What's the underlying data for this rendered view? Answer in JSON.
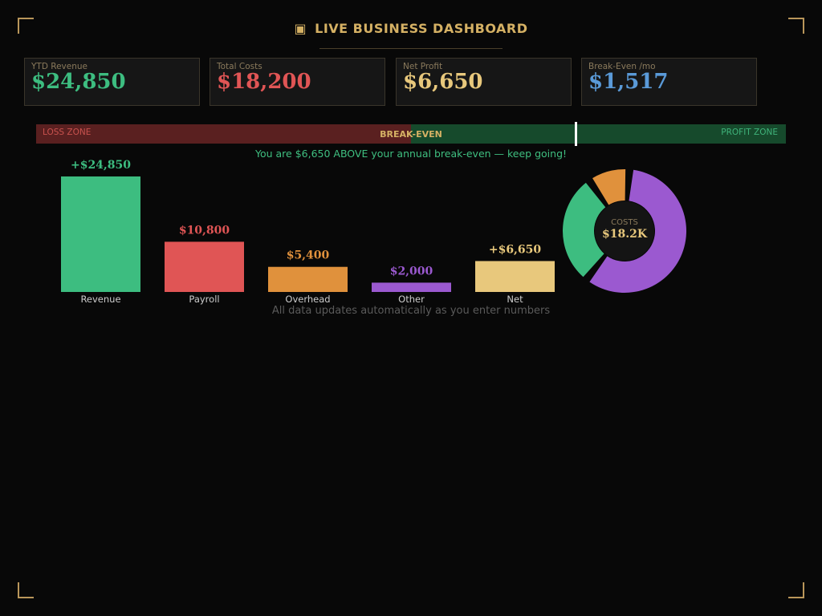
{
  "header": {
    "icon": "▣",
    "icon_name": "dashboard-icon",
    "title": "LIVE BUSINESS DASHBOARD"
  },
  "kpis": [
    {
      "label": "YTD Revenue",
      "value": "$24,850",
      "color": "#3dbd80"
    },
    {
      "label": "Total Costs",
      "value": "$18,200",
      "color": "#e05555"
    },
    {
      "label": "Net Profit",
      "value": "$6,650",
      "color": "#e8c87c"
    },
    {
      "label": "Break-Even /mo",
      "value": "$1,517",
      "color": "#5a9ad8"
    }
  ],
  "zone": {
    "loss_label": "LOSS ZONE",
    "mid_label": "BREAK-EVEN",
    "profit_label": "PROFIT ZONE",
    "message": "You are $6,650 ABOVE your annual break-even — keep going!"
  },
  "footer_note": "All data updates automatically as you enter numbers",
  "chart_data": [
    {
      "type": "bar",
      "categories": [
        "Revenue",
        "Payroll",
        "Overhead",
        "Other",
        "Net"
      ],
      "values": [
        24850,
        10800,
        5400,
        2000,
        6650
      ],
      "value_labels": [
        "+$24,850",
        "$10,800",
        "$5,400",
        "$2,000",
        "+$6,650"
      ],
      "colors": [
        "#3dbd80",
        "#e05555",
        "#e0913c",
        "#9b59d0",
        "#e8c87c"
      ],
      "ylim": [
        0,
        24850
      ]
    },
    {
      "type": "pie",
      "categories": [
        "Payroll",
        "Overhead",
        "Other"
      ],
      "values": [
        10800,
        5400,
        2000
      ],
      "colors": [
        "#9b59d0",
        "#3dbd80",
        "#e0913c"
      ],
      "center_label": "COSTS",
      "center_value": "$18.2K"
    }
  ]
}
